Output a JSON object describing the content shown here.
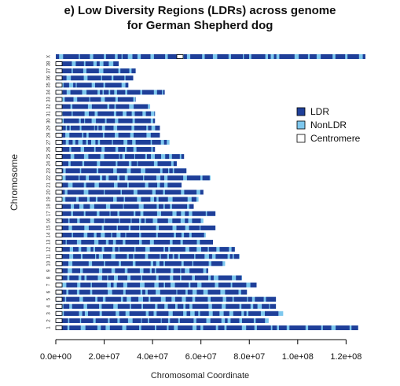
{
  "chart_data": {
    "type": "chromosome-map",
    "title": "e) Low Diversity Regions (LDRs) across genome",
    "subtitle": "for German Shepherd dog",
    "xlabel": "Chromosomal Coordinate",
    "ylabel": "Chromosome",
    "xlim": [
      0,
      128000000
    ],
    "xticks": [
      0,
      20000000,
      40000000,
      60000000,
      80000000,
      100000000,
      120000000
    ],
    "xtick_labels": [
      "0.0e+00",
      "2.0e+07",
      "4.0e+07",
      "6.0e+07",
      "8.0e+07",
      "1.0e+08",
      "1.2e+08"
    ],
    "chromosomes": [
      "1",
      "2",
      "3",
      "4",
      "5",
      "6",
      "7",
      "8",
      "9",
      "10",
      "11",
      "12",
      "13",
      "14",
      "15",
      "16",
      "17",
      "18",
      "19",
      "20",
      "21",
      "22",
      "23",
      "24",
      "25",
      "26",
      "27",
      "28",
      "29",
      "30",
      "31",
      "32",
      "33",
      "34",
      "35",
      "36",
      "37",
      "38",
      "X"
    ],
    "lengths": [
      125000000,
      88000000,
      94000000,
      91000000,
      91000000,
      79000000,
      83000000,
      77000000,
      63000000,
      70000000,
      76000000,
      74000000,
      65000000,
      62000000,
      66000000,
      61000000,
      66000000,
      57000000,
      59000000,
      61000000,
      52000000,
      64000000,
      54000000,
      50000000,
      53000000,
      41000000,
      47000000,
      43000000,
      43000000,
      41000000,
      41000000,
      39000000,
      33000000,
      45000000,
      30000000,
      32000000,
      33000000,
      26000000,
      128000000
    ],
    "centromere_position": {
      "autosomes": 0,
      "X": 51000000
    },
    "legend": [
      "LDR",
      "NonLDR",
      "Centromere"
    ],
    "legend_position": "right",
    "colors": {
      "LDR": "#1f3f99",
      "NonLDR": "#7ec8ee",
      "Centromere": "#ffffff"
    }
  }
}
